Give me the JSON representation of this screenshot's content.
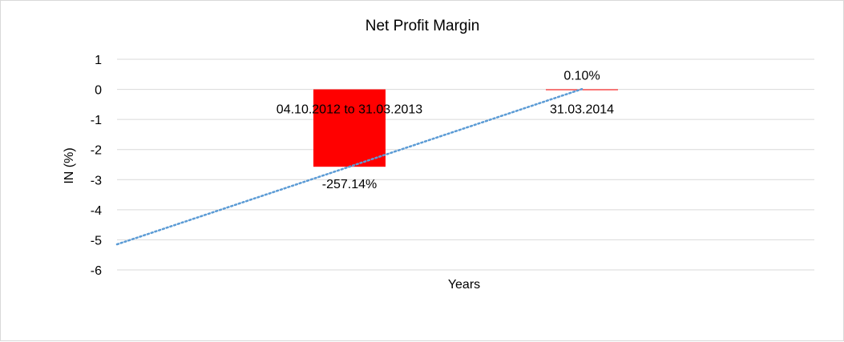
{
  "chart_data": {
    "type": "bar",
    "title": "Net Profit Margin",
    "xlabel": "Years",
    "ylabel": "IN (%)",
    "ylim": [
      -6,
      1
    ],
    "yticks": [
      1,
      0,
      -1,
      -2,
      -3,
      -4,
      -5,
      -6
    ],
    "ytick_labels": [
      "1",
      "0",
      "-1",
      "-2",
      "-3",
      "-4",
      "-5",
      "-6"
    ],
    "grid": true,
    "categories": [
      "04.10.2012 to 31.03.2013",
      "31.03.2014"
    ],
    "values": [
      -2.5714,
      0.001
    ],
    "data_labels": [
      "-257.14%",
      "0.10%"
    ],
    "bar_color": "#ff0000",
    "trendline": {
      "style": "dotted",
      "color": "#5b9bd5",
      "x": [
        0,
        2
      ],
      "y": [
        -5.15,
        0.01
      ]
    }
  }
}
